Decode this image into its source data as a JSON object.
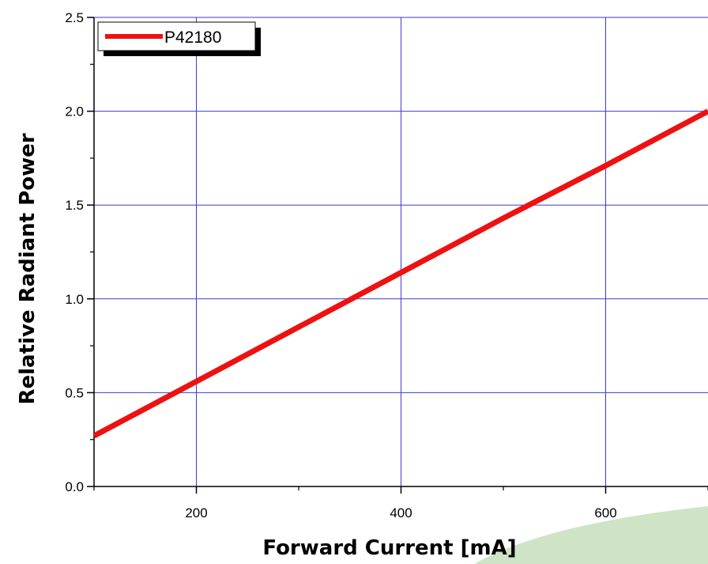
{
  "chart_data": {
    "type": "line",
    "xlabel": "Forward Current [mA]",
    "ylabel": "Relative Radiant Power",
    "xlim": [
      100,
      700
    ],
    "ylim": [
      0,
      2.5
    ],
    "x_ticks": [
      200,
      400,
      600
    ],
    "x_tick_labels": [
      "200",
      "400",
      "600"
    ],
    "x_minor_ticks": [
      100,
      300,
      500,
      700
    ],
    "y_ticks": [
      0,
      0.5,
      1.0,
      1.5,
      2.0,
      2.5
    ],
    "y_tick_labels": [
      "0.0",
      "0.5",
      "1.0",
      "1.5",
      "2.0",
      "2.5"
    ],
    "y_minor_ticks": [
      0.25,
      0.75,
      1.25,
      1.75,
      2.25
    ],
    "grid": true,
    "grid_color": "#3a3ad6",
    "legend": {
      "position": "top-left"
    },
    "series": [
      {
        "name": "P42180",
        "color": "#ee1111",
        "x": [
          100,
          200,
          300,
          400,
          500,
          600,
          700
        ],
        "y": [
          0.27,
          0.56,
          0.85,
          1.14,
          1.43,
          1.71,
          2.0
        ]
      }
    ]
  },
  "decoration": {
    "swoosh_color": "#cfe3c6"
  }
}
